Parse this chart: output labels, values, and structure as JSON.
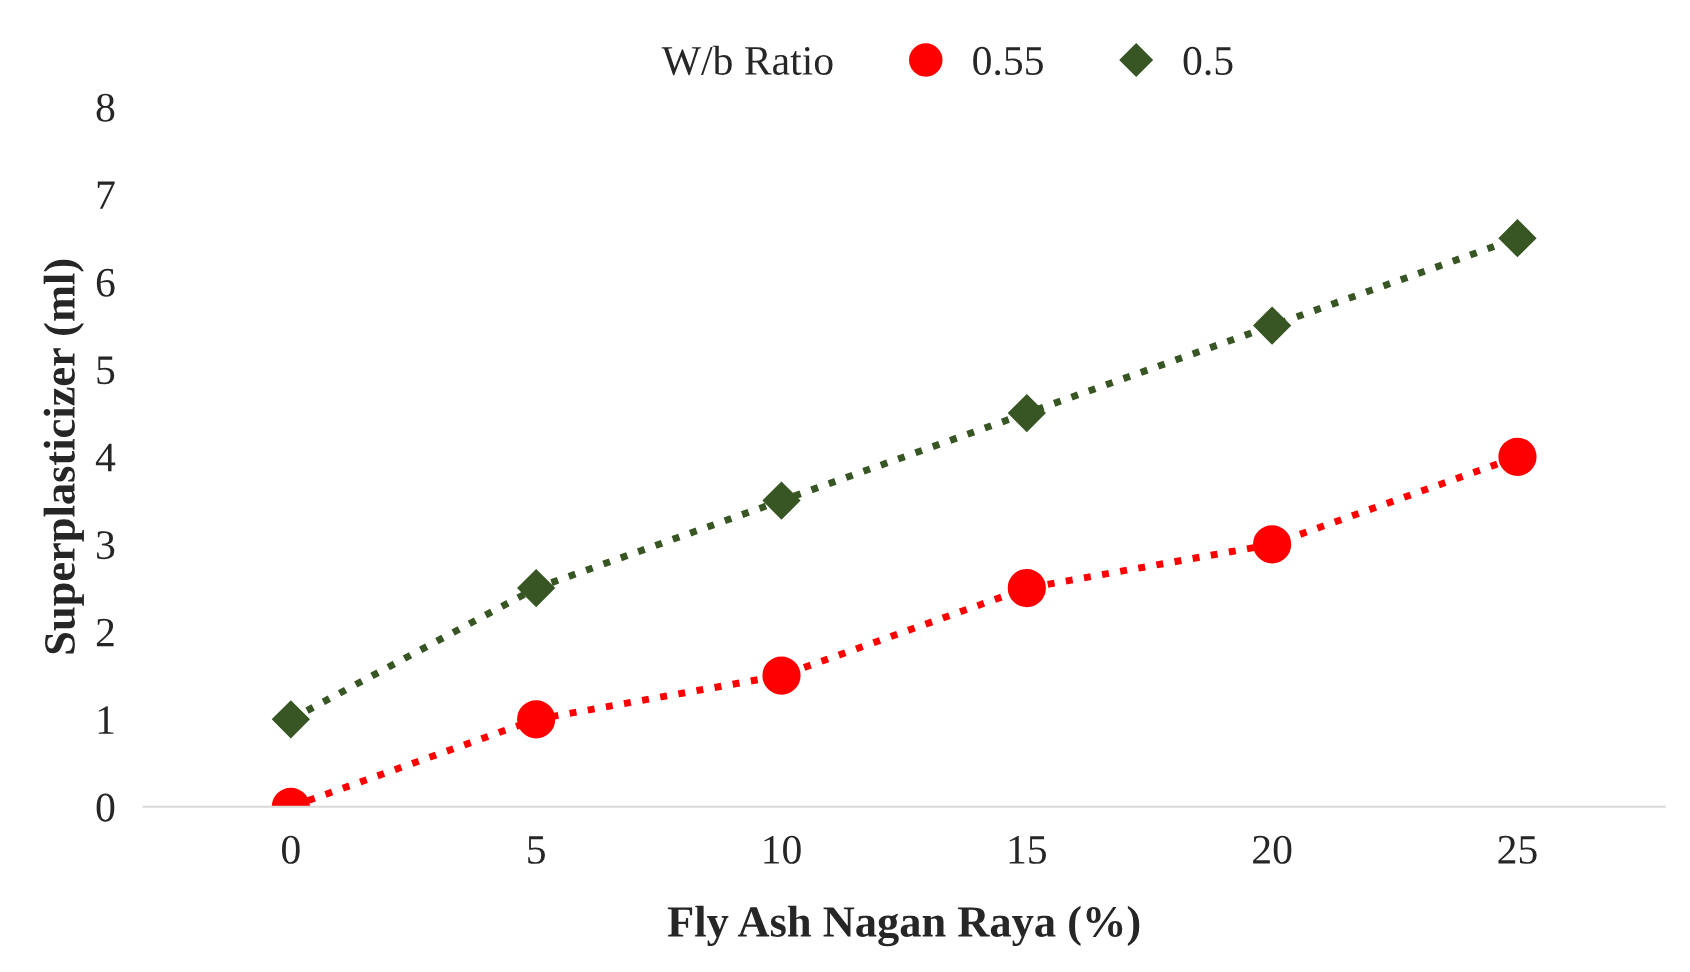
{
  "chart_data": {
    "type": "line",
    "xlabel": "Fly Ash Nagan Raya (%)",
    "ylabel": "Superplasticizer (ml)",
    "legend_title": "W/b Ratio",
    "x": [
      0,
      5,
      10,
      15,
      20,
      25
    ],
    "series": [
      {
        "name": "0.55",
        "color": "#ff0000",
        "marker": "circle",
        "values": [
          0,
          1,
          1.5,
          2.5,
          3,
          4
        ]
      },
      {
        "name": "0.5",
        "color": "#375623",
        "marker": "diamond",
        "values": [
          1,
          2.5,
          3.5,
          4.5,
          5.5,
          6.5
        ]
      }
    ],
    "line_style": "dotted",
    "xlim": [
      -3,
      28
    ],
    "xticks": [
      0,
      5,
      10,
      15,
      20,
      25
    ],
    "ylim": [
      0,
      8
    ],
    "yticks": [
      0,
      1,
      2,
      3,
      4,
      5,
      6,
      7,
      8
    ],
    "grid": false,
    "legend": "top"
  }
}
